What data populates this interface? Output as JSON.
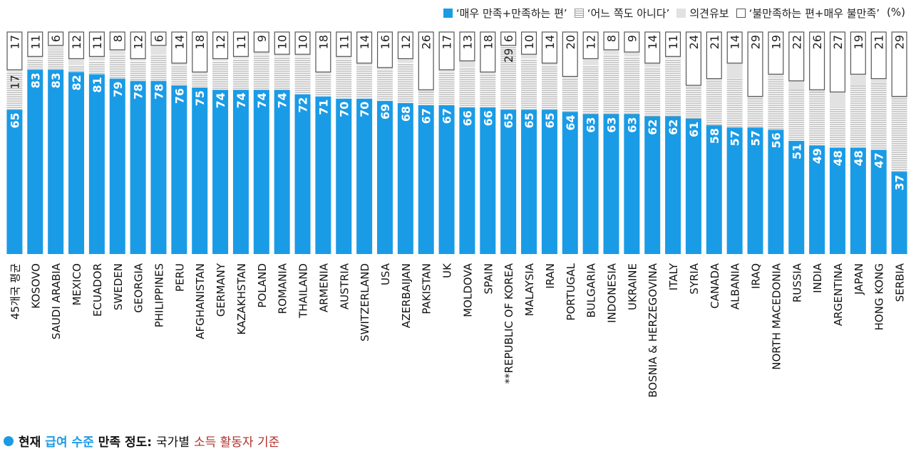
{
  "chart_data": {
    "type": "bar",
    "stacked": true,
    "unit": "(%)",
    "title": [
      {
        "text": "현재",
        "color": "#111111",
        "bold": true
      },
      {
        "text": "급여 수준",
        "color": "#1a9be6",
        "bold": true
      },
      {
        "text": "만족 정도:",
        "color": "#111111",
        "bold": true
      },
      {
        "text": "국가별",
        "color": "#111111",
        "bold": false
      },
      {
        "text": "소득 활동자 기준",
        "color": "#b0302a",
        "bold": false
      }
    ],
    "categories": [
      "45개국 평균",
      "KOSOVO",
      "SAUDI ARABIA",
      "MEXICO",
      "ECUADOR",
      "SWEDEN",
      "GEORGIA",
      "PHILIPPINES",
      "PERU",
      "AFGHANISTAN",
      "GERMANY",
      "KAZAKHSTAN",
      "POLAND",
      "ROMANIA",
      "THAILAND",
      "ARMENIA",
      "AUSTRIA",
      "SWITZERLAND",
      "USA",
      "AZERBAIJAN",
      "PAKISTAN",
      "UK",
      "MOLDOVA",
      "SPAIN",
      "**REPUBLIC OF KOREA",
      "MALAYSIA",
      "IRAN",
      "PORTUGAL",
      "BULGARIA",
      "INDONESIA",
      "UKRAINE",
      "BOSNIA & HERZEGOVINA",
      "ITALY",
      "SYRIA",
      "CANADA",
      "ALBANIA",
      "IRAQ",
      "NORTH MACEDONIA",
      "RUSSIA",
      "INDIA",
      "ARGENTINA",
      "JAPAN",
      "HONG KONG",
      "SERBIA"
    ],
    "ylim": [
      0,
      100
    ],
    "series": [
      {
        "name": "‘매우 만족+만족하는 편’",
        "color": "#1a9be6",
        "label_color": "#ffffff",
        "values": [
          65,
          83,
          83,
          82,
          81,
          79,
          78,
          78,
          76,
          75,
          74,
          74,
          74,
          74,
          72,
          71,
          70,
          70,
          69,
          68,
          67,
          67,
          66,
          66,
          65,
          65,
          65,
          64,
          63,
          63,
          63,
          62,
          62,
          61,
          58,
          57,
          57,
          56,
          51,
          49,
          48,
          48,
          47,
          37
        ]
      },
      {
        "name": "‘어느 쪽도 아니다’",
        "color": "#9a9a9a",
        "pattern": "hatch",
        "label_color": "#222222",
        "values": [
          17,
          5,
          9,
          3,
          6,
          11,
          9,
          12,
          9,
          6,
          13,
          14,
          16,
          15,
          17,
          10,
          18,
          15,
          14,
          18,
          6,
          15,
          18,
          15,
          29,
          23,
          20,
          15,
          22,
          27,
          26,
          22,
          26,
          14,
          20,
          22,
          13,
          23,
          23,
          24,
          18,
          28,
          30,
          33
        ],
        "value_labels": [
          "17",
          null,
          null,
          null,
          null,
          null,
          null,
          null,
          null,
          null,
          null,
          null,
          null,
          null,
          null,
          null,
          null,
          null,
          null,
          null,
          null,
          null,
          null,
          null,
          "29",
          null,
          null,
          null,
          null,
          null,
          null,
          null,
          null,
          null,
          null,
          null,
          null,
          null,
          null,
          null,
          null,
          null,
          null,
          null
        ]
      },
      {
        "name": "의견유보",
        "color": "#e2e2e2",
        "values": [
          1,
          1,
          2,
          3,
          2,
          2,
          1,
          4,
          1,
          1,
          1,
          1,
          1,
          1,
          1,
          1,
          1,
          1,
          1,
          2,
          1,
          1,
          3,
          1,
          0,
          2,
          1,
          1,
          3,
          2,
          2,
          2,
          1,
          1,
          1,
          7,
          1,
          2,
          4,
          1,
          7,
          5,
          2,
          1
        ]
      },
      {
        "name": "‘불만족하는 편+매우 불만족’",
        "color": "#ffffff",
        "border": "#555555",
        "label_color": "#222222",
        "values": [
          17,
          11,
          6,
          12,
          11,
          8,
          12,
          6,
          14,
          18,
          12,
          11,
          9,
          10,
          10,
          18,
          11,
          14,
          16,
          12,
          26,
          17,
          13,
          18,
          6,
          10,
          14,
          20,
          12,
          8,
          9,
          14,
          11,
          24,
          21,
          14,
          29,
          19,
          22,
          26,
          27,
          19,
          21,
          29
        ]
      }
    ]
  }
}
